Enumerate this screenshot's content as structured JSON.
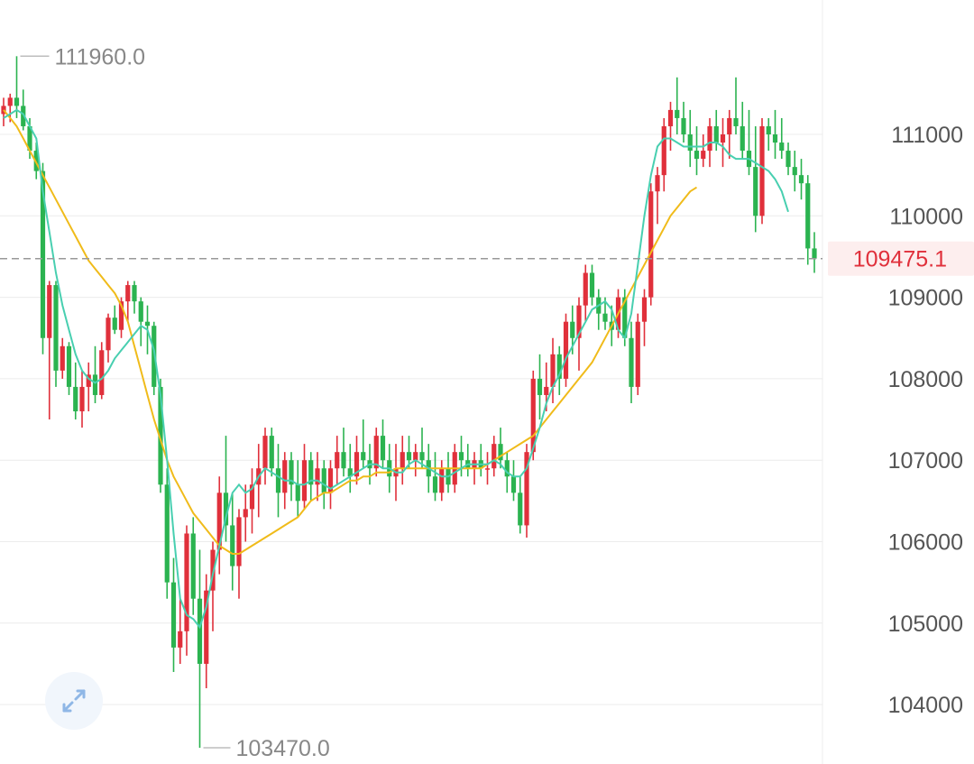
{
  "chart_data": {
    "type": "candlestick",
    "y_axis": {
      "ticks": [
        111000,
        110000,
        109000,
        108000,
        107000,
        106000,
        105000,
        104000
      ],
      "tick_labels": [
        "111000",
        "110000",
        "109000",
        "108000",
        "107000",
        "106000",
        "105000",
        "104000"
      ],
      "position": "right"
    },
    "current_price": {
      "value": 109475.1,
      "label": "109475.1"
    },
    "high_marker": {
      "value": 111960.0,
      "label": "111960.0",
      "candle_index": 2
    },
    "low_marker": {
      "value": 103470.0,
      "label": "103470.0",
      "candle_index": 30
    },
    "grid": true,
    "candles": [
      [
        111250,
        111450,
        111100,
        111350
      ],
      [
        111350,
        111500,
        111150,
        111450
      ],
      [
        111450,
        111960,
        111200,
        111350
      ],
      [
        111350,
        111550,
        111050,
        111100
      ],
      [
        111100,
        111200,
        110700,
        110800
      ],
      [
        110800,
        110900,
        110450,
        110550
      ],
      [
        110550,
        110650,
        108300,
        108500
      ],
      [
        108500,
        109200,
        107500,
        109150
      ],
      [
        109150,
        109200,
        107900,
        108100
      ],
      [
        108100,
        108500,
        108000,
        108400
      ],
      [
        108400,
        108450,
        107800,
        107900
      ],
      [
        107900,
        108200,
        107500,
        107600
      ],
      [
        107600,
        108100,
        107400,
        107900
      ],
      [
        107900,
        108200,
        107600,
        108050
      ],
      [
        108050,
        108400,
        107700,
        107800
      ],
      [
        107800,
        108450,
        107750,
        108350
      ],
      [
        108350,
        108800,
        108200,
        108750
      ],
      [
        108750,
        108900,
        108550,
        108600
      ],
      [
        108600,
        109000,
        108500,
        108950
      ],
      [
        108950,
        109200,
        108700,
        109150
      ],
      [
        109150,
        109200,
        108800,
        108950
      ],
      [
        108950,
        109000,
        108400,
        108700
      ],
      [
        108700,
        108900,
        108300,
        108650
      ],
      [
        108650,
        108700,
        107800,
        107900
      ],
      [
        107900,
        108000,
        106600,
        106700
      ],
      [
        106700,
        106900,
        105300,
        105500
      ],
      [
        105500,
        105800,
        104400,
        104700
      ],
      [
        104700,
        105300,
        104500,
        104900
      ],
      [
        104900,
        106200,
        104600,
        106100
      ],
      [
        106100,
        106300,
        105100,
        105300
      ],
      [
        105300,
        105900,
        103470,
        104500
      ],
      [
        104500,
        105600,
        104200,
        105400
      ],
      [
        105400,
        106000,
        104900,
        105900
      ],
      [
        105900,
        106800,
        105600,
        106600
      ],
      [
        106600,
        107300,
        106000,
        106200
      ],
      [
        106200,
        106600,
        105400,
        105700
      ],
      [
        105700,
        106400,
        105300,
        106300
      ],
      [
        106300,
        106700,
        106000,
        106400
      ],
      [
        106400,
        106900,
        106100,
        106700
      ],
      [
        106700,
        107200,
        106300,
        106900
      ],
      [
        106900,
        107400,
        106700,
        107300
      ],
      [
        107300,
        107400,
        106800,
        106900
      ],
      [
        106900,
        107200,
        106300,
        106600
      ],
      [
        106600,
        107100,
        106400,
        107000
      ],
      [
        107000,
        107100,
        106500,
        106700
      ],
      [
        106700,
        107000,
        106300,
        106500
      ],
      [
        106500,
        107200,
        106400,
        107000
      ],
      [
        107000,
        107100,
        106500,
        106700
      ],
      [
        106700,
        107100,
        106500,
        106900
      ],
      [
        106900,
        107000,
        106400,
        106600
      ],
      [
        106600,
        107000,
        106400,
        106900
      ],
      [
        106900,
        107300,
        106700,
        107100
      ],
      [
        107100,
        107400,
        106800,
        106900
      ],
      [
        106900,
        107200,
        106600,
        106800
      ],
      [
        106800,
        107300,
        106700,
        107100
      ],
      [
        107100,
        107500,
        106900,
        107000
      ],
      [
        107000,
        107200,
        106700,
        106900
      ],
      [
        106900,
        107400,
        106800,
        107300
      ],
      [
        107300,
        107500,
        106900,
        107000
      ],
      [
        107000,
        107200,
        106600,
        106800
      ],
      [
        106800,
        107200,
        106500,
        106900
      ],
      [
        106900,
        107300,
        106700,
        107100
      ],
      [
        107100,
        107300,
        106900,
        107000
      ],
      [
        107000,
        107200,
        106800,
        107100
      ],
      [
        107100,
        107400,
        106900,
        107000
      ],
      [
        107000,
        107200,
        106600,
        106800
      ],
      [
        106800,
        107100,
        106500,
        106600
      ],
      [
        106600,
        107000,
        106500,
        106900
      ],
      [
        106900,
        107100,
        106600,
        106700
      ],
      [
        106700,
        107200,
        106600,
        107100
      ],
      [
        107100,
        107300,
        106800,
        107000
      ],
      [
        107000,
        107200,
        106800,
        106900
      ],
      [
        106900,
        107100,
        106700,
        107000
      ],
      [
        107000,
        107200,
        106800,
        106900
      ],
      [
        106900,
        107100,
        106700,
        106900
      ],
      [
        106900,
        107300,
        106800,
        107200
      ],
      [
        107200,
        107400,
        106900,
        107000
      ],
      [
        107000,
        107100,
        106600,
        106800
      ],
      [
        106800,
        107000,
        106500,
        106600
      ],
      [
        106600,
        106800,
        106100,
        106200
      ],
      [
        106200,
        107200,
        106050,
        107100
      ],
      [
        107100,
        108100,
        107000,
        108000
      ],
      [
        108000,
        108300,
        107500,
        107800
      ],
      [
        107800,
        108200,
        107600,
        107900
      ],
      [
        107900,
        108500,
        107700,
        108300
      ],
      [
        108300,
        108400,
        107800,
        108000
      ],
      [
        108000,
        108800,
        107900,
        108700
      ],
      [
        108700,
        108900,
        108300,
        108500
      ],
      [
        108500,
        109000,
        108100,
        108900
      ],
      [
        108900,
        109400,
        108700,
        109300
      ],
      [
        109300,
        109400,
        108900,
        109000
      ],
      [
        109000,
        109100,
        108600,
        108800
      ],
      [
        108800,
        109000,
        108600,
        108700
      ],
      [
        108700,
        108900,
        108400,
        108600
      ],
      [
        108600,
        109100,
        108500,
        109000
      ],
      [
        109000,
        109100,
        108400,
        108500
      ],
      [
        108500,
        108700,
        107700,
        107900
      ],
      [
        107900,
        108800,
        107800,
        108700
      ],
      [
        108700,
        109100,
        108400,
        109000
      ],
      [
        109000,
        110400,
        108900,
        110300
      ],
      [
        110300,
        110600,
        109900,
        110500
      ],
      [
        110500,
        111200,
        110300,
        111100
      ],
      [
        111100,
        111400,
        110800,
        111300
      ],
      [
        111300,
        111700,
        111000,
        111200
      ],
      [
        111200,
        111400,
        110900,
        111000
      ],
      [
        111000,
        111300,
        110600,
        110800
      ],
      [
        110800,
        111100,
        110500,
        110700
      ],
      [
        110700,
        111000,
        110600,
        110800
      ],
      [
        110800,
        111200,
        110600,
        111100
      ],
      [
        111100,
        111300,
        110800,
        110900
      ],
      [
        110900,
        111200,
        110600,
        111000
      ],
      [
        111000,
        111300,
        110700,
        111200
      ],
      [
        111200,
        111700,
        111000,
        111100
      ],
      [
        111100,
        111400,
        110700,
        110800
      ],
      [
        110800,
        111300,
        110500,
        110600
      ],
      [
        110600,
        111100,
        109800,
        110000
      ],
      [
        110000,
        111200,
        109900,
        111100
      ],
      [
        111100,
        111200,
        110800,
        111000
      ],
      [
        111000,
        111300,
        110700,
        110900
      ],
      [
        110900,
        111200,
        110700,
        110800
      ],
      [
        110800,
        110900,
        110500,
        110600
      ],
      [
        110600,
        110800,
        110300,
        110500
      ],
      [
        110500,
        110700,
        110200,
        110400
      ],
      [
        110400,
        110500,
        109400,
        109600
      ],
      [
        109600,
        109800,
        109300,
        109475.1
      ]
    ],
    "ma_fast": [
      111200,
      111250,
      111300,
      111250,
      111100,
      110950,
      110300,
      109800,
      109300,
      108900,
      108600,
      108300,
      108100,
      108000,
      107950,
      108000,
      108100,
      108250,
      108350,
      108450,
      108550,
      108650,
      108600,
      108350,
      107800,
      107000,
      106100,
      105300,
      105100,
      105050,
      104950,
      105200,
      105600,
      105950,
      106300,
      106600,
      106700,
      106600,
      106650,
      106800,
      106900,
      106850,
      106800,
      106750,
      106750,
      106700,
      106700,
      106750,
      106750,
      106700,
      106650,
      106700,
      106750,
      106800,
      106850,
      106900,
      106950,
      106950,
      106900,
      106900,
      106850,
      106850,
      106950,
      107000,
      106950,
      106900,
      106850,
      106800,
      106800,
      106850,
      106900,
      106950,
      106950,
      106950,
      106950,
      107000,
      106950,
      106850,
      106800,
      106800,
      106900,
      107150,
      107400,
      107700,
      107900,
      108050,
      108250,
      108400,
      108550,
      108700,
      108850,
      108900,
      108950,
      108850,
      108600,
      108500,
      108800,
      109400,
      110000,
      110500,
      110850,
      110950,
      110950,
      110900,
      110850,
      110850,
      110850,
      110850,
      110900,
      110900,
      110850,
      110750,
      110700,
      110700,
      110700,
      110650,
      110600,
      110550,
      110450,
      110300,
      110050
    ],
    "ma_slow": [
      111300,
      111200,
      111100,
      110950,
      110800,
      110650,
      110500,
      110350,
      110200,
      110050,
      109900,
      109750,
      109600,
      109450,
      109350,
      109250,
      109150,
      109050,
      108900,
      108700,
      108400,
      108100,
      107800,
      107500,
      107250,
      107000,
      106800,
      106650,
      106500,
      106350,
      106250,
      106150,
      106050,
      105950,
      105900,
      105850,
      105850,
      105900,
      105950,
      106000,
      106050,
      106100,
      106150,
      106200,
      106250,
      106300,
      106400,
      106500,
      106550,
      106600,
      106600,
      106650,
      106700,
      106750,
      106750,
      106800,
      106800,
      106850,
      106850,
      106850,
      106900,
      106900,
      106900,
      106900,
      106900,
      106900,
      106900,
      106900,
      106900,
      106900,
      106900,
      106900,
      106900,
      106900,
      106950,
      107000,
      107050,
      107100,
      107150,
      107200,
      107250,
      107300,
      107400,
      107500,
      107600,
      107700,
      107800,
      107900,
      108000,
      108100,
      108200,
      108350,
      108500,
      108650,
      108800,
      108950,
      109100,
      109250,
      109400,
      109550,
      109700,
      109850,
      110000,
      110100,
      110200,
      110300,
      110350
    ]
  },
  "colors": {
    "up": "#e0303b",
    "down": "#2bb350",
    "ma_fast": "#48cfb0",
    "ma_slow": "#f0bb1a",
    "grid": "#ececec",
    "axis_text": "#555555",
    "marker_text": "#888888",
    "current_price_text": "#e0303b",
    "current_price_bg": "#fdeeee",
    "dashed_line": "#999999"
  },
  "controls": {
    "expand_icon": "expand-arrows-icon"
  }
}
